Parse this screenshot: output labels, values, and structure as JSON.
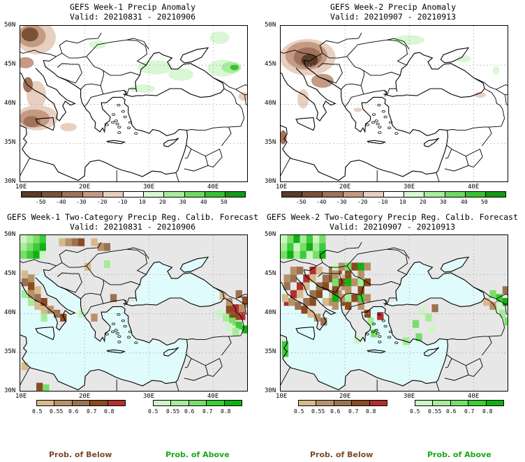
{
  "panels": [
    {
      "title": "GEFS Week-1 Precip Anomaly",
      "valid": "Valid: 20210831 - 20210906"
    },
    {
      "title": "GEFS Week-2 Precip Anomaly",
      "valid": "Valid: 20210907 - 20210913"
    },
    {
      "title": "GEFS Week-1 Two-Category Precip Reg. Calib. Forecast",
      "valid": "Valid: 20210831 - 20210906"
    },
    {
      "title": "GEFS Week-2 Two-Category Precip Reg. Calib. Forecast",
      "valid": "Valid: 20210907 - 20210913"
    }
  ],
  "axes": {
    "lat_labels": [
      "50N",
      "45N",
      "40N",
      "35N",
      "30N"
    ],
    "lon_labels": [
      "10E",
      "20E",
      "30E",
      "40E"
    ]
  },
  "anomaly_colorbar": {
    "labels": [
      "-50",
      "-40",
      "-30",
      "-20",
      "-10",
      "10",
      "20",
      "30",
      "40",
      "50"
    ],
    "colors": [
      "#5a3a28",
      "#7a5237",
      "#a0725a",
      "#c49a82",
      "#e8cfc0",
      "#ffffff",
      "#d9f7d4",
      "#a8ec9e",
      "#6fda62",
      "#37c232",
      "#119a12"
    ]
  },
  "below_colorbar": {
    "labels": [
      "0.5",
      "0.55",
      "0.6",
      "0.7",
      "0.8"
    ],
    "colors": [
      "#d7b98c",
      "#b89068",
      "#9a7250",
      "#8b4a1f",
      "#b03030"
    ]
  },
  "above_colorbar": {
    "labels": [
      "0.5",
      "0.55",
      "0.6",
      "0.7",
      "0.8"
    ],
    "colors": [
      "#ccf5c4",
      "#a5ec98",
      "#78de6a",
      "#3ccb3a",
      "#12b012"
    ]
  },
  "prob_below_label": "Prob. of Below",
  "prob_above_label": "Prob. of Above",
  "colors": {
    "sea": "#e0fbfb",
    "land_gray": "#e7e7e7",
    "below_text": "#7a4a2a",
    "above_text": "#18a818"
  }
}
